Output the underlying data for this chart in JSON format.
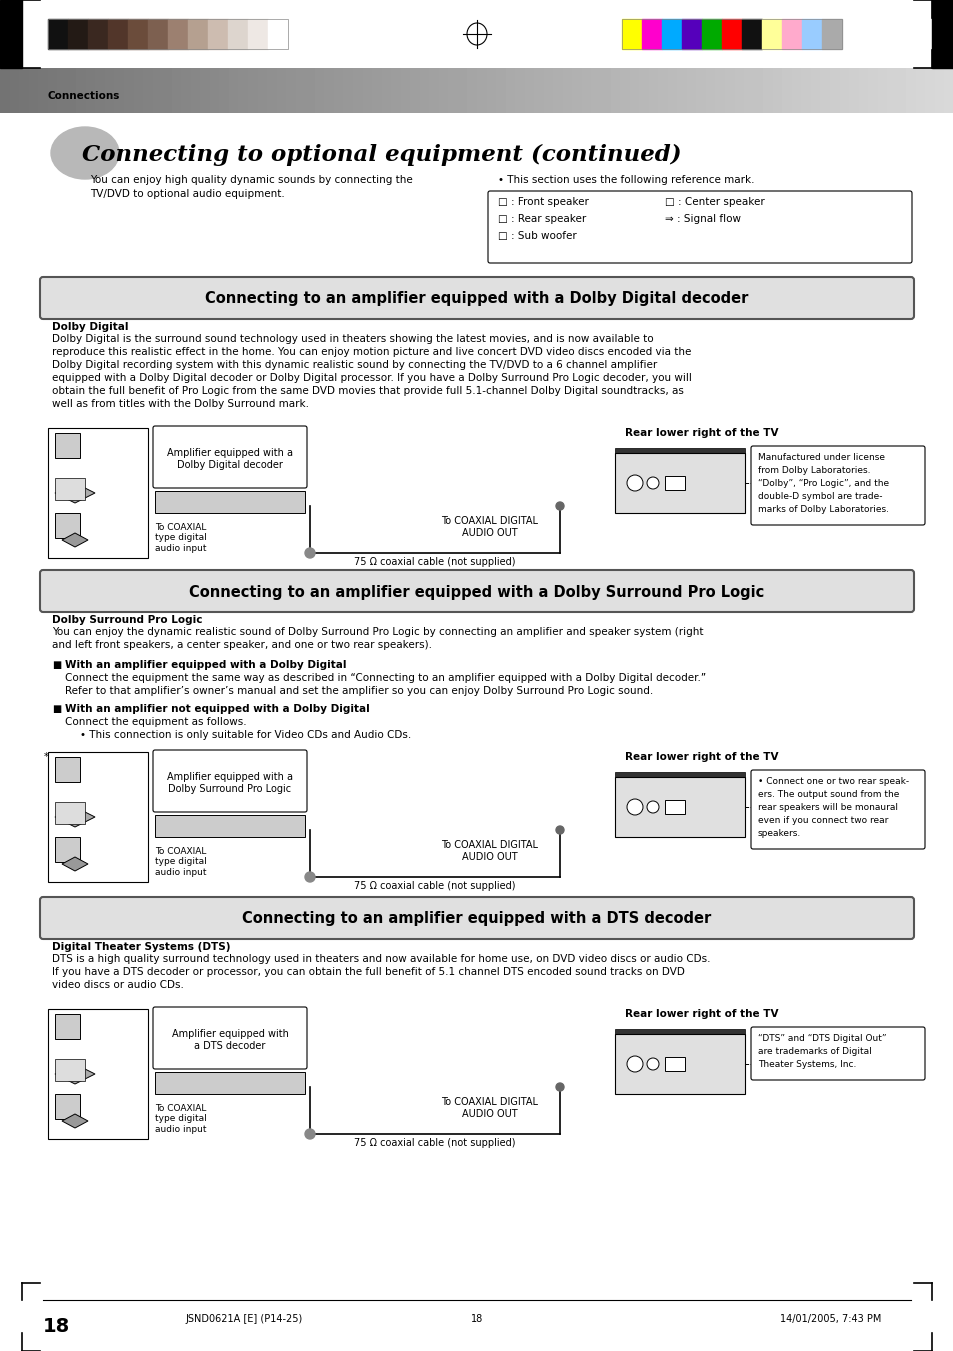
{
  "page_bg": "#ffffff",
  "header_text": "Connections",
  "title": "Connecting to optional equipment (continued)",
  "intro_text1a": "You can enjoy high quality dynamic sounds by connecting the",
  "intro_text1b": "TV/DVD to optional audio equipment.",
  "intro_text2": "• This section uses the following reference mark.",
  "legend_col1": [
    "□ : Front speaker",
    "□ : Rear speaker",
    "□ : Sub woofer"
  ],
  "legend_col2": [
    "□ : Center speaker",
    "⇒ : Signal flow"
  ],
  "section1_title": "Connecting to an amplifier equipped with a Dolby Digital decoder",
  "section1_bold": "Dolby Digital",
  "section1_body": [
    "Dolby Digital is the surround sound technology used in theaters showing the latest movies, and is now available to",
    "reproduce this realistic effect in the home. You can enjoy motion picture and live concert DVD video discs encoded via the",
    "Dolby Digital recording system with this dynamic realistic sound by connecting the TV/DVD to a 6 channel amplifier",
    "equipped with a Dolby Digital decoder or Dolby Digital processor. If you have a Dolby Surround Pro Logic decoder, you will",
    "obtain the full benefit of Pro Logic from the same DVD movies that provide full 5.1-channel Dolby Digital soundtracks, as",
    "well as from titles with the Dolby Surround mark."
  ],
  "section2_title": "Connecting to an amplifier equipped with a Dolby Surround Pro Logic",
  "section2_bold": "Dolby Surround Pro Logic",
  "section2_body": [
    "You can enjoy the dynamic realistic sound of Dolby Surround Pro Logic by connecting an amplifier and speaker system (right",
    "and left front speakers, a center speaker, and one or two rear speakers)."
  ],
  "section2_b1_bold": "With an amplifier equipped with a Dolby Digital",
  "section2_b1_lines": [
    "Connect the equipment the same way as described in “Connecting to an amplifier equipped with a Dolby Digital decoder.”",
    "Refer to that amplifier’s owner’s manual and set the amplifier so you can enjoy Dolby Surround Pro Logic sound."
  ],
  "section2_b2_bold": "With an amplifier not equipped with a Dolby Digital",
  "section2_b2_line": "Connect the equipment as follows.",
  "section2_sub": "• This connection is only suitable for Video CDs and Audio CDs.",
  "section3_title": "Connecting to an amplifier equipped with a DTS decoder",
  "section3_bold": "Digital Theater Systems (DTS)",
  "section3_body": [
    "DTS is a high quality surround technology used in theaters and now available for home use, on DVD video discs or audio CDs.",
    "If you have a DTS decoder or processor, you can obtain the full benefit of 5.1 channel DTS encoded sound tracks on DVD",
    "video discs or audio CDs."
  ],
  "rear_tv": "Rear lower right of the TV",
  "d1_amp_label": "Amplifier equipped with a\nDolby Digital decoder",
  "d1_coax_label": "To COAXIAL\ntype digital\naudio input",
  "d1_out_label": "To COAXIAL DIGITAL\nAUDIO OUT",
  "d1_cable": "75 Ω coaxial cable (not supplied)",
  "d1_note": [
    "Manufactured under license",
    "from Dolby Laboratories.",
    "“Dolby”, “Pro Logic”, and the",
    "double-D symbol are trade-",
    "marks of Dolby Laboratories."
  ],
  "d2_amp_label": "Amplifier equipped with a\nDolby Surround Pro Logic",
  "d2_coax_label": "To COAXIAL\ntype digital\naudio input",
  "d2_out_label": "To COAXIAL DIGITAL\nAUDIO OUT",
  "d2_cable": "75 Ω coaxial cable (not supplied)",
  "d2_note": [
    "• Connect one or two rear speak-",
    "ers. The output sound from the",
    "rear speakers will be monaural",
    "even if you connect two rear",
    "speakers."
  ],
  "d3_amp_label": "Amplifier equipped with\na DTS decoder",
  "d3_coax_label": "To COAXIAL\ntype digital\naudio input",
  "d3_out_label": "To COAXIAL DIGITAL\nAUDIO OUT",
  "d3_cable": "75 Ω coaxial cable (not supplied)",
  "d3_note": [
    "“DTS” and “DTS Digital Out”",
    "are trademarks of Digital",
    "Theater Systems, Inc."
  ],
  "footer_left": "JSND0621A [E] (P14-25)",
  "footer_mid": "18",
  "footer_right": "14/01/2005, 7:43 PM",
  "page_num": "18",
  "bars_left": [
    "#111111",
    "#231a15",
    "#3a2820",
    "#52362a",
    "#6b4c3b",
    "#7d6050",
    "#9c8070",
    "#b5a090",
    "#cdbcb0",
    "#ddd5ce",
    "#eee8e4",
    "#ffffff"
  ],
  "bars_right": [
    "#ffff00",
    "#ff00cc",
    "#00aaff",
    "#5500bb",
    "#00aa00",
    "#ff0000",
    "#111111",
    "#ffff99",
    "#ffaacc",
    "#99ccff",
    "#aaaaaa"
  ]
}
